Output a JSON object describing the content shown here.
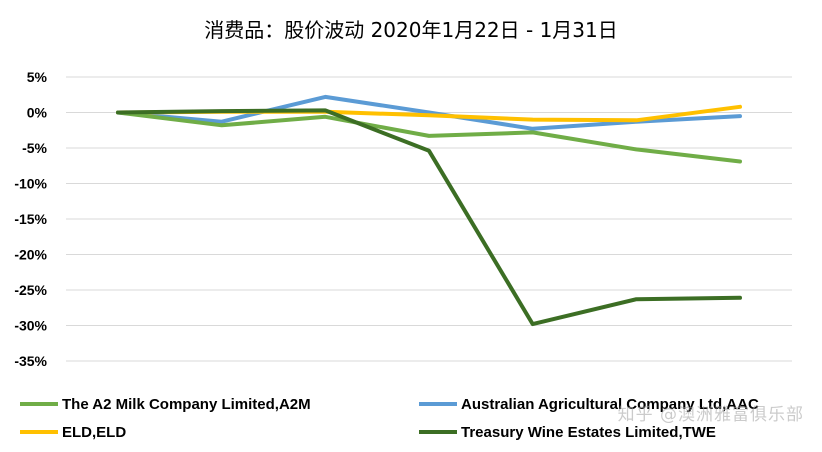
{
  "chart_data": {
    "type": "line",
    "title": "消费品：股价波动 2020年1月22日 - 1月31日",
    "xlabel": "",
    "ylabel": "",
    "ylim": [
      -35,
      5
    ],
    "yticks": [
      5,
      0,
      -5,
      -10,
      -15,
      -20,
      -25,
      -30,
      -35
    ],
    "ytick_labels": [
      "5%",
      "0%",
      "-5%",
      "-10%",
      "-15%",
      "-20%",
      "-25%",
      "-30%",
      "-35%"
    ],
    "x": [
      0,
      1,
      2,
      3,
      4,
      5,
      6
    ],
    "grid": true,
    "legend_position": "bottom",
    "series": [
      {
        "name": "The A2 Milk Company Limited,A2M",
        "color": "#70ad47",
        "values": [
          0,
          -1.8,
          -0.6,
          -3.3,
          -2.8,
          -5.2,
          -6.9
        ]
      },
      {
        "name": "Australian Agricultural Company Ltd,AAC",
        "color": "#5b9bd5",
        "values": [
          0,
          -1.3,
          2.2,
          0,
          -2.3,
          -1.3,
          -0.5
        ]
      },
      {
        "name": "ELD,ELD",
        "color": "#ffc000",
        "values": [
          0,
          0.1,
          0.1,
          -0.4,
          -1.0,
          -1.1,
          0.8
        ]
      },
      {
        "name": "Treasury Wine Estates Limited,TWE",
        "color": "#3c6e24",
        "values": [
          0,
          0.2,
          0.3,
          -5.4,
          -29.8,
          -26.3,
          -26.1
        ]
      }
    ]
  },
  "watermark": "知乎 @澳洲雅富俱乐部"
}
